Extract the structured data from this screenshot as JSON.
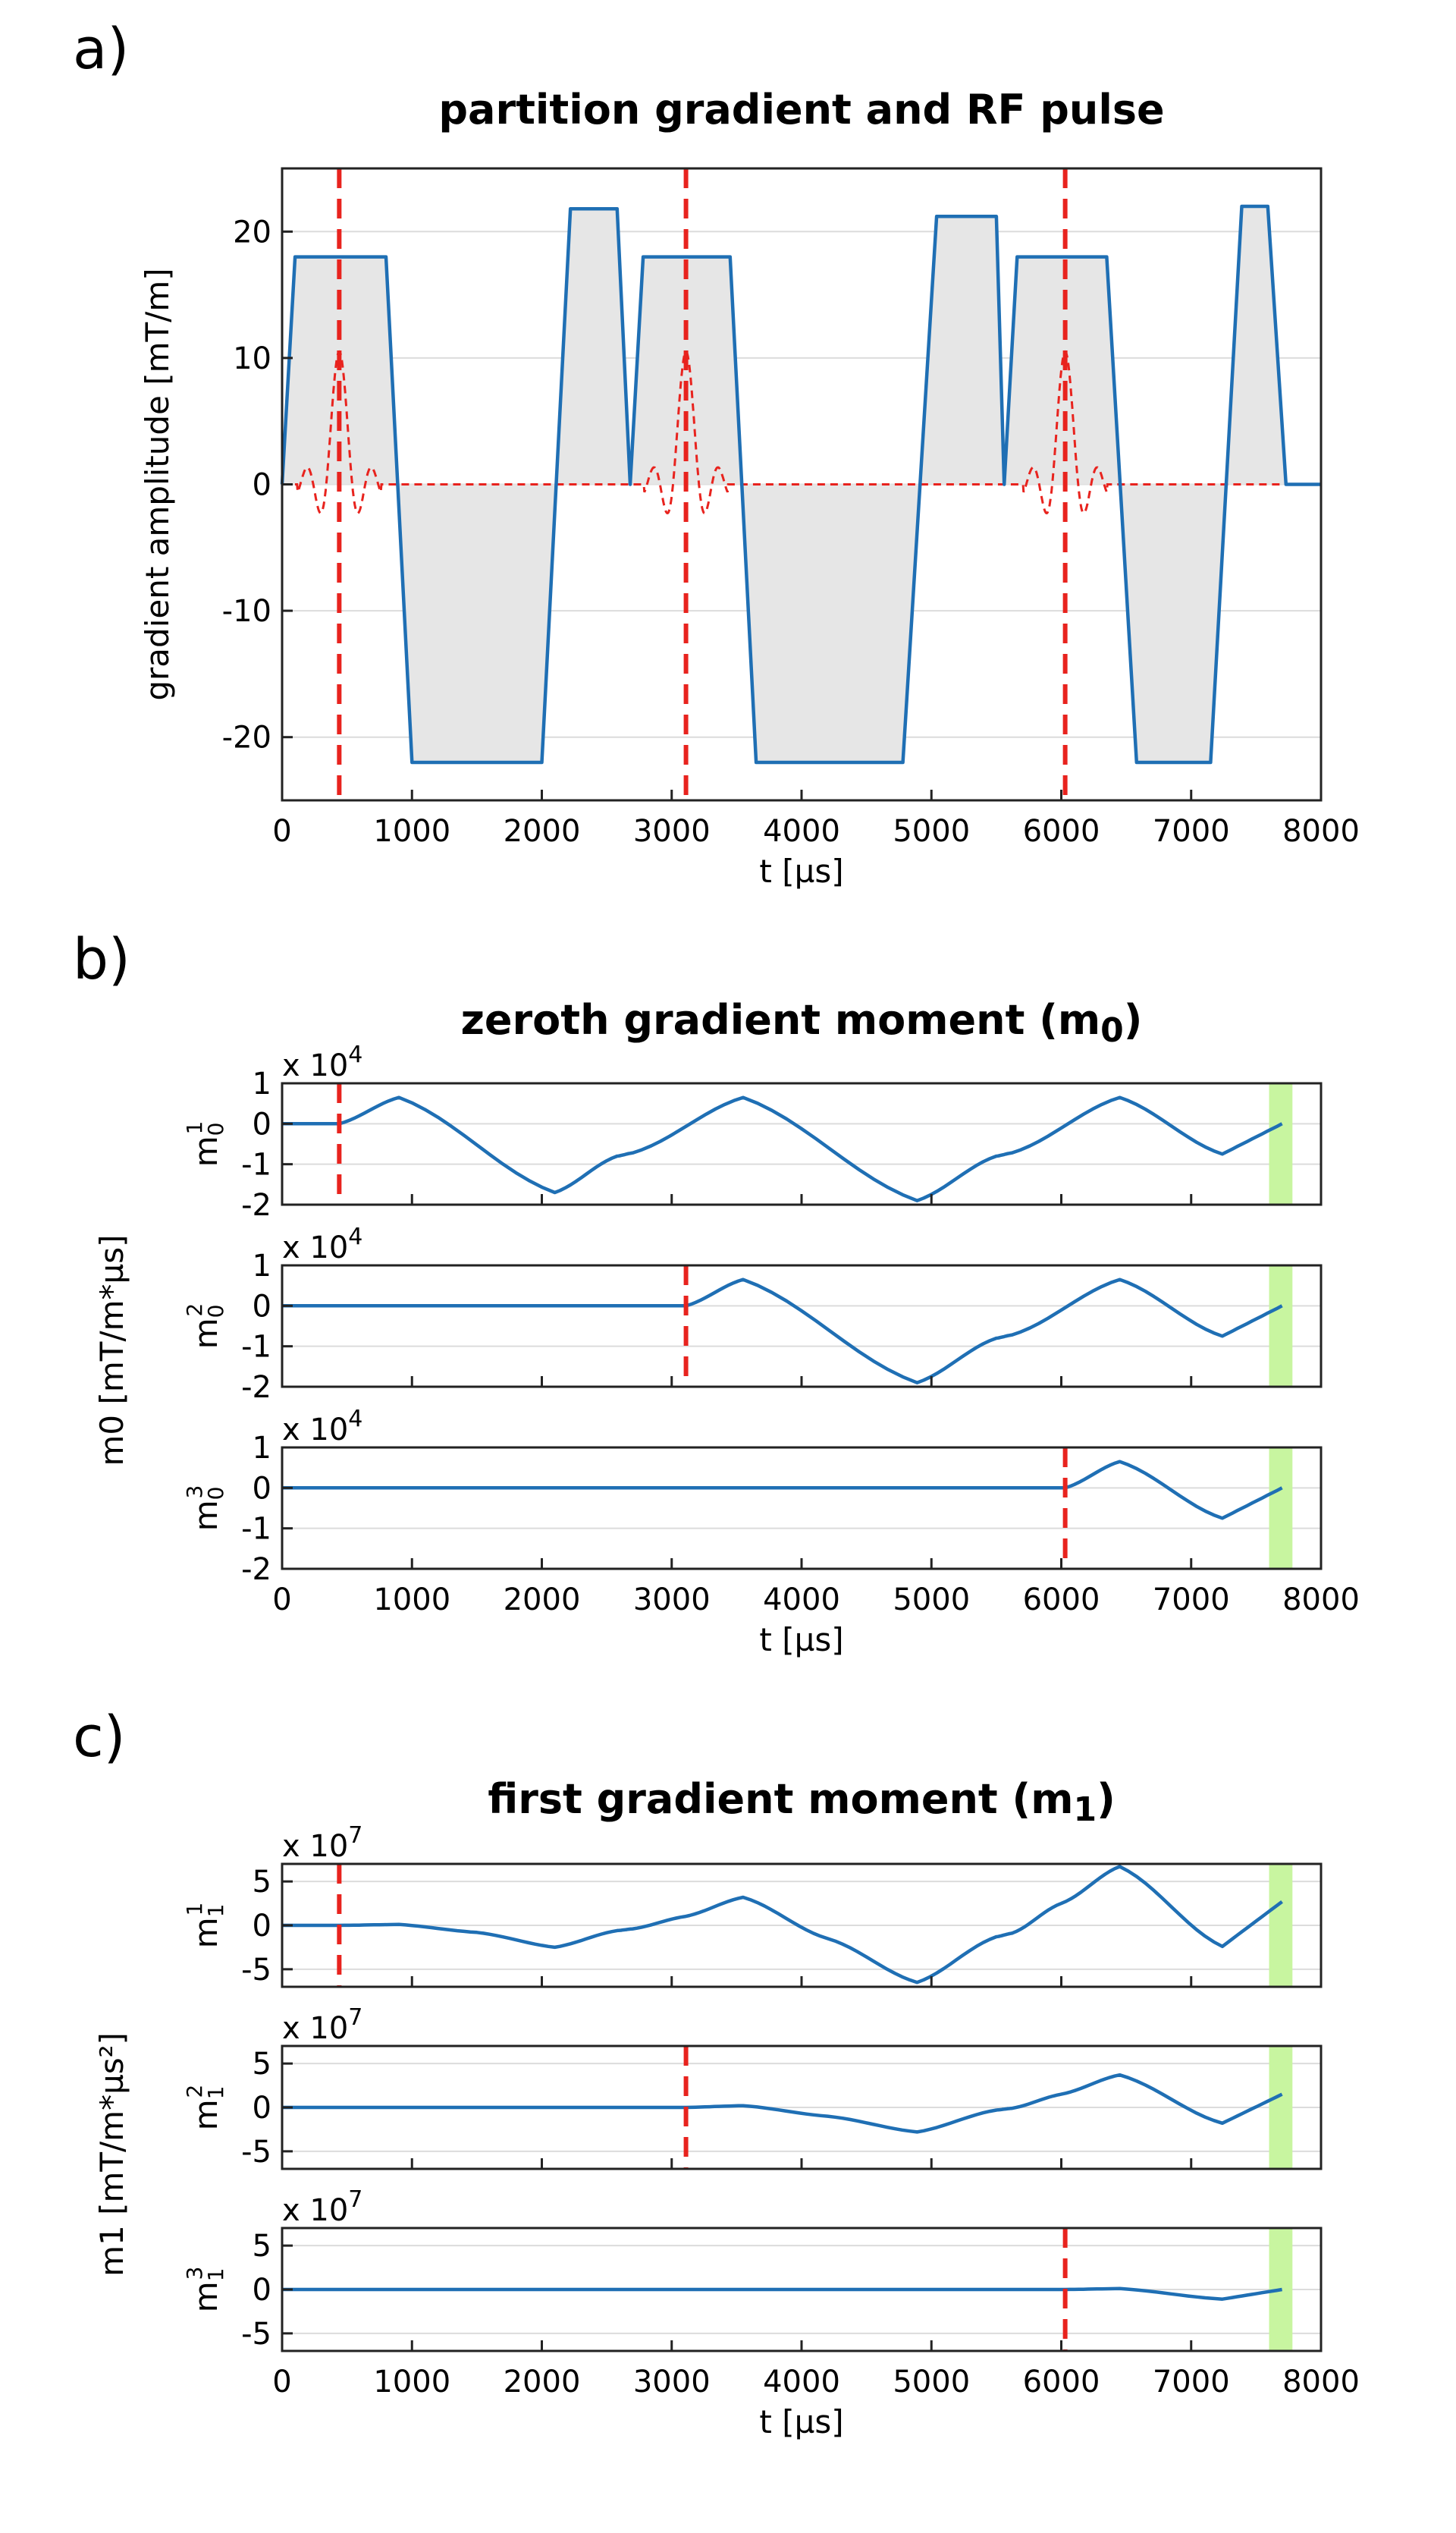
{
  "colors": {
    "gradient": "#1f6fb4",
    "rf": "#e8231e",
    "fill": "#e6e6e6",
    "highlight": "#c8f5a0"
  },
  "panel_labels": [
    "a)",
    "b)",
    "c)"
  ],
  "chart_data": [
    {
      "type": "area",
      "panel": "a)",
      "title": "partition gradient and RF pulse",
      "xlabel": "t [µs]",
      "ylabel": "gradient amplitude [mT/m]",
      "xlim": [
        0,
        8000
      ],
      "ylim": [
        -25,
        25
      ],
      "xticks": [
        0,
        1000,
        2000,
        3000,
        4000,
        5000,
        6000,
        7000,
        8000
      ],
      "yticks": [
        -20,
        -10,
        0,
        10,
        20
      ],
      "series": [
        {
          "name": "partition gradient",
          "style": "solid",
          "x": [
            0,
            100,
            800,
            1000,
            2000,
            2220,
            2580,
            2680,
            2780,
            3450,
            3650,
            4780,
            5040,
            5500,
            5560,
            5660,
            6350,
            6580,
            7150,
            7390,
            7590,
            7730,
            8000
          ],
          "y": [
            0,
            18,
            18,
            -22,
            -22,
            21.8,
            21.8,
            0,
            18,
            18,
            -22,
            -22,
            21.2,
            21.2,
            0,
            18,
            18,
            -22,
            -22,
            22,
            22,
            0,
            0
          ]
        },
        {
          "name": "RF pulse",
          "style": "dashed",
          "centers": [
            440,
            3110,
            6030
          ],
          "peak": 10.5,
          "half_width": 320
        }
      ],
      "rf_markers_t": [
        440,
        3110,
        6030
      ],
      "highlight_range": null
    },
    {
      "type": "line",
      "panel": "b)",
      "title": "zeroth gradient moment (m0)",
      "shared_ylabel": "m0 [mT/m*µs]",
      "xlabel": "t [µs]",
      "xlim": [
        0,
        8000
      ],
      "ylim": [
        -2,
        1
      ],
      "multiplier": "x 10",
      "multiplier_exp": "4",
      "xticks": [
        0,
        1000,
        2000,
        3000,
        4000,
        5000,
        6000,
        7000,
        8000
      ],
      "yticks": [
        1,
        0,
        -1,
        -2
      ],
      "highlight_range": [
        7600,
        7780
      ],
      "subplots": [
        {
          "ylabel": "m0",
          "ylabel_sup": "1",
          "marker_t": 440,
          "x": [
            0,
            440,
            900,
            2100,
            2580,
            2700,
            3550,
            4890,
            5500,
            5620,
            6450,
            7240,
            7700
          ],
          "y": [
            0,
            0,
            0.65,
            -1.7,
            -0.8,
            -0.72,
            0.65,
            -1.9,
            -0.8,
            -0.72,
            0.65,
            -0.75,
            0
          ]
        },
        {
          "ylabel": "m0",
          "ylabel_sup": "2",
          "marker_t": 3110,
          "x": [
            0,
            3110,
            3550,
            4890,
            5500,
            5620,
            6450,
            7240,
            7700
          ],
          "y": [
            0,
            0,
            0.65,
            -1.9,
            -0.8,
            -0.72,
            0.65,
            -0.75,
            0
          ]
        },
        {
          "ylabel": "m0",
          "ylabel_sup": "3",
          "marker_t": 6030,
          "x": [
            0,
            6030,
            6450,
            7240,
            7700
          ],
          "y": [
            0,
            0,
            0.65,
            -0.75,
            0
          ]
        }
      ]
    },
    {
      "type": "line",
      "panel": "c)",
      "title": "first gradient moment (m1)",
      "shared_ylabel": "m1 [mT/m*µs²]",
      "xlabel": "t [µs]",
      "xlim": [
        0,
        8000
      ],
      "ylim": [
        -7,
        7
      ],
      "multiplier": "x 10",
      "multiplier_exp": "7",
      "xticks": [
        0,
        1000,
        2000,
        3000,
        4000,
        5000,
        6000,
        7000,
        8000
      ],
      "yticks": [
        5,
        0,
        -5
      ],
      "highlight_range": [
        7600,
        7780
      ],
      "subplots": [
        {
          "ylabel": "m1",
          "ylabel_sup": "1",
          "marker_t": 440,
          "x": [
            0,
            440,
            900,
            1500,
            2100,
            2580,
            2700,
            3100,
            3550,
            4200,
            4890,
            5500,
            5620,
            6000,
            6450,
            7240,
            7700
          ],
          "y": [
            0,
            0,
            0.1,
            -0.8,
            -2.5,
            -0.6,
            -0.4,
            1,
            3.2,
            -1.5,
            -6.5,
            -1.3,
            -0.9,
            2.5,
            6.7,
            -2.4,
            2.7
          ]
        },
        {
          "ylabel": "m1",
          "ylabel_sup": "2",
          "marker_t": 3110,
          "x": [
            0,
            3110,
            3550,
            4200,
            4890,
            5500,
            5620,
            6000,
            6450,
            7240,
            7700
          ],
          "y": [
            0,
            0,
            0.2,
            -1,
            -2.8,
            -0.3,
            -0.1,
            1.5,
            3.7,
            -1.8,
            1.5
          ]
        },
        {
          "ylabel": "m1",
          "ylabel_sup": "3",
          "marker_t": 6030,
          "x": [
            0,
            6030,
            6450,
            7240,
            7700
          ],
          "y": [
            0,
            0,
            0.1,
            -1.1,
            0
          ]
        }
      ]
    }
  ]
}
